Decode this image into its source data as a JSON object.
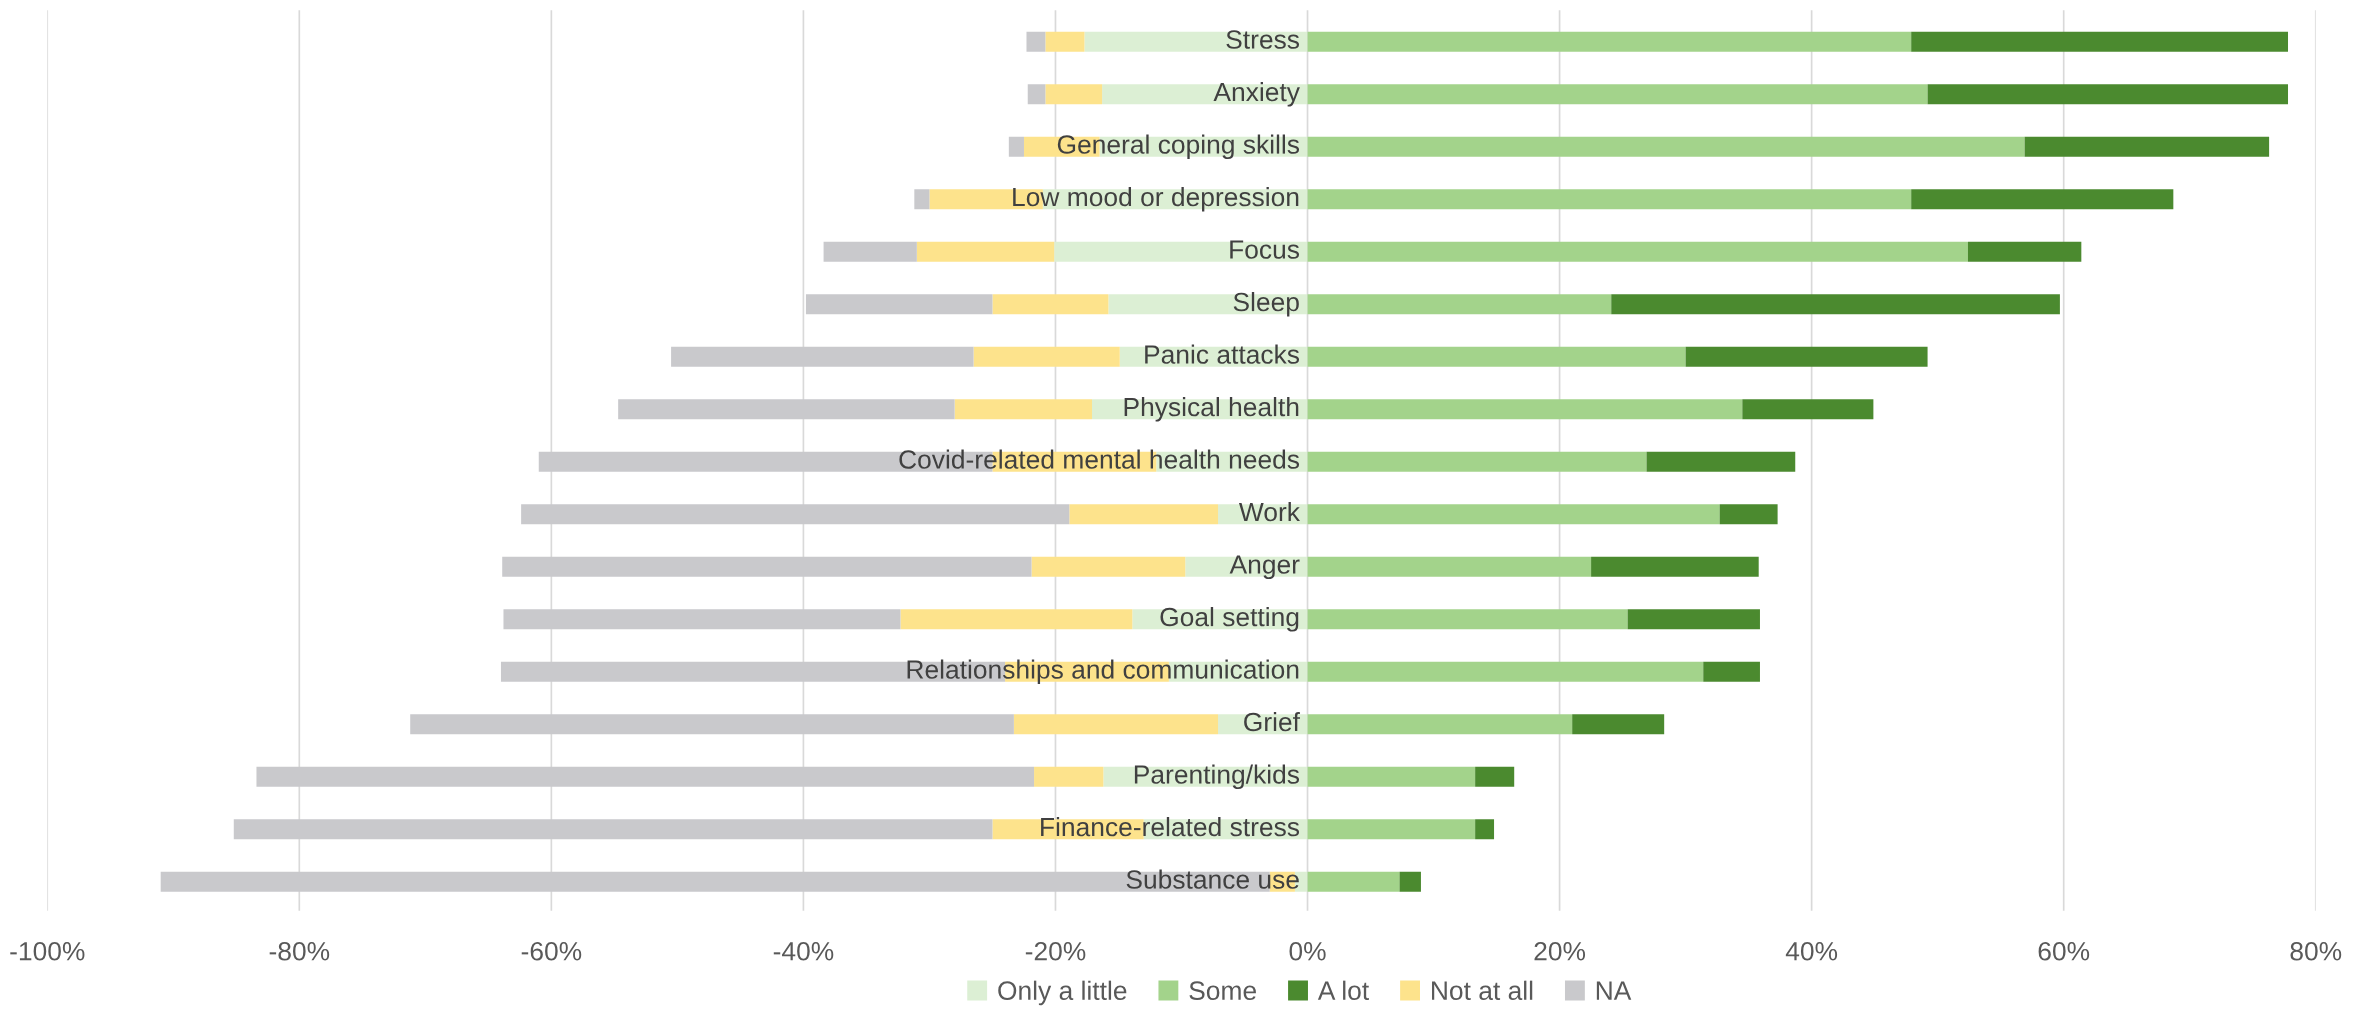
{
  "chart_data": {
    "type": "bar",
    "orientation": "horizontal",
    "stacked": true,
    "categories": [
      "Stress",
      "Anxiety",
      "General coping skills",
      "Low mood or depression",
      "Focus",
      "Sleep",
      "Panic attacks",
      "Physical health",
      "Covid-related mental health needs",
      "Work",
      "Anger",
      "Goal setting",
      "Relationships and communication",
      "Grief",
      "Parenting/kids",
      "Finance-related stress",
      "Substance use"
    ],
    "series": [
      {
        "name": "Only a little",
        "color": "#dcefd4",
        "values": [
          -17.7,
          -16.3,
          -16.5,
          -21,
          -20.1,
          -15.8,
          -14.9,
          -17.1,
          -12,
          -7.1,
          -9.7,
          -13.9,
          -11,
          -7.1,
          -16.2,
          -13,
          -1
        ]
      },
      {
        "name": "Some",
        "color": "#a3d38b",
        "values": [
          47.9,
          49.2,
          56.9,
          47.9,
          52.4,
          24.1,
          30.0,
          34.5,
          26.9,
          32.7,
          22.5,
          25.4,
          31.4,
          21.0,
          13.3,
          13.3,
          7.3
        ]
      },
      {
        "name": "A lot",
        "color": "#4b8a2f",
        "values": [
          29.9,
          28.6,
          19.4,
          20.8,
          9.0,
          35.6,
          19.2,
          10.4,
          11.8,
          4.6,
          13.3,
          10.5,
          4.5,
          7.3,
          3.1,
          1.5,
          1.7
        ]
      },
      {
        "name": "Not at all",
        "color": "#fde38c",
        "values": [
          -3.1,
          -4.5,
          -6,
          -9,
          -10.9,
          -9.2,
          -11.6,
          -10.9,
          -13,
          -11.8,
          -12.2,
          -18.4,
          -13,
          -16.2,
          -5.5,
          -12,
          -2
        ]
      },
      {
        "name": "NA",
        "color": "#c9c9cc",
        "values": [
          -1.5,
          -1.4,
          -1.2,
          -1.2,
          -7.4,
          -14.8,
          -24.0,
          -26.7,
          -36,
          -43.5,
          -42.0,
          -31.5,
          -40,
          -47.9,
          -61.7,
          -60.2,
          -88
        ]
      }
    ],
    "xlim": [
      -100,
      80
    ],
    "xticks": [
      {
        "value": -100,
        "label": "-100%"
      },
      {
        "value": -80,
        "label": "-80%"
      },
      {
        "value": -60,
        "label": "-60%"
      },
      {
        "value": -40,
        "label": "-40%"
      },
      {
        "value": -20,
        "label": "-20%"
      },
      {
        "value": 0,
        "label": "0%"
      },
      {
        "value": 20,
        "label": "20%"
      },
      {
        "value": 40,
        "label": "40%"
      },
      {
        "value": 60,
        "label": "60%"
      },
      {
        "value": 80,
        "label": "80%"
      }
    ],
    "grid": "x",
    "legend": "bottom"
  }
}
